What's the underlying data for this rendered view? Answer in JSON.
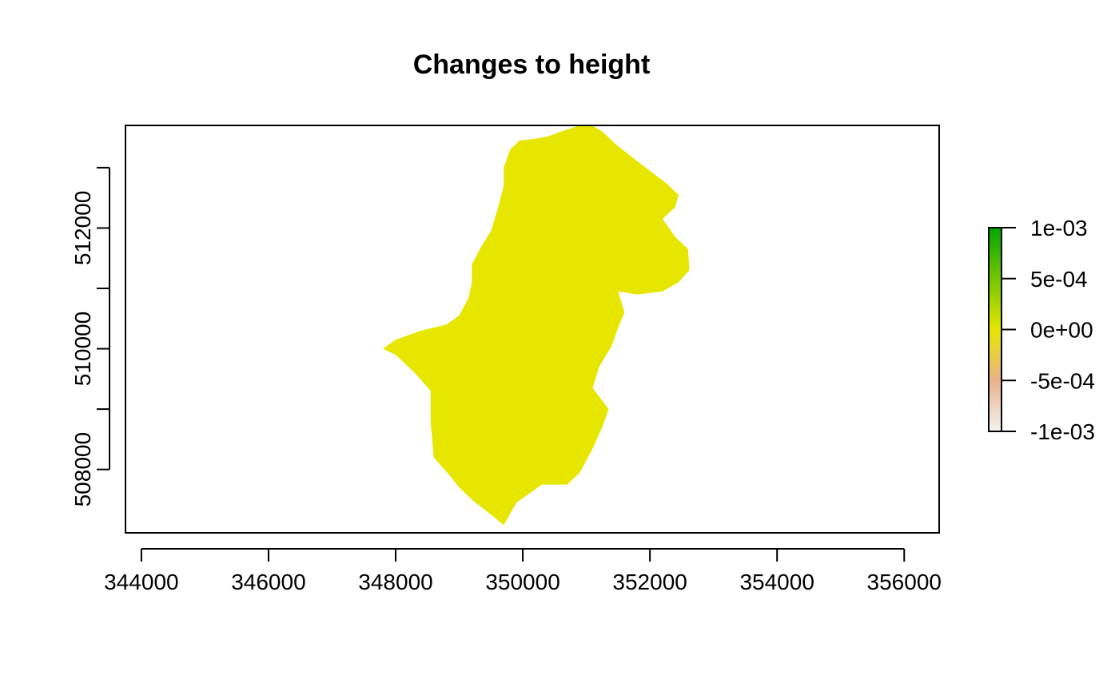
{
  "chart_data": {
    "type": "heatmap",
    "title": "Changes to height",
    "xlabel": "",
    "ylabel": "",
    "xlim": [
      343750,
      356550
    ],
    "ylim": [
      506950,
      513700
    ],
    "x_ticks": [
      344000,
      346000,
      348000,
      350000,
      352000,
      354000,
      356000
    ],
    "x_tick_labels": [
      "344000",
      "346000",
      "348000",
      "350000",
      "352000",
      "354000",
      "356000"
    ],
    "y_ticks": [
      508000,
      509000,
      510000,
      511000,
      512000,
      513000
    ],
    "y_tick_labels": [
      "508000",
      "",
      "510000",
      "",
      "512000",
      ""
    ],
    "raster_value": 0,
    "raster_color": "#E6E600",
    "legend": {
      "placement": "right",
      "min": -0.001,
      "max": 0.001,
      "ticks": [
        0.001,
        0.0005,
        0,
        -0.0005,
        -0.001
      ],
      "tick_labels": [
        "1e-03",
        "5e-04",
        "0e+00",
        "-5e-04",
        "-1e-03"
      ],
      "colors": [
        "#00A600",
        "#E6E600",
        "#F2F2F2"
      ]
    },
    "region_outline": [
      [
        351050,
        513720
      ],
      [
        351250,
        513600
      ],
      [
        351450,
        513400
      ],
      [
        351750,
        513150
      ],
      [
        352000,
        512950
      ],
      [
        352250,
        512750
      ],
      [
        352450,
        512550
      ],
      [
        352400,
        512350
      ],
      [
        352200,
        512150
      ],
      [
        352400,
        511850
      ],
      [
        352600,
        511650
      ],
      [
        352620,
        511300
      ],
      [
        352450,
        511100
      ],
      [
        352200,
        510950
      ],
      [
        351800,
        510900
      ],
      [
        351500,
        510950
      ],
      [
        351600,
        510600
      ],
      [
        351500,
        510350
      ],
      [
        351400,
        510050
      ],
      [
        351200,
        509700
      ],
      [
        351100,
        509350
      ],
      [
        351350,
        509000
      ],
      [
        351250,
        508700
      ],
      [
        351100,
        508350
      ],
      [
        350900,
        507950
      ],
      [
        350700,
        507750
      ],
      [
        350300,
        507750
      ],
      [
        349900,
        507450
      ],
      [
        349700,
        507080
      ],
      [
        349500,
        507250
      ],
      [
        349200,
        507500
      ],
      [
        349000,
        507700
      ],
      [
        348850,
        507900
      ],
      [
        348600,
        508200
      ],
      [
        348550,
        508800
      ],
      [
        348550,
        509300
      ],
      [
        348300,
        509600
      ],
      [
        348000,
        509900
      ],
      [
        347800,
        510000
      ],
      [
        348000,
        510150
      ],
      [
        348400,
        510300
      ],
      [
        348800,
        510400
      ],
      [
        349000,
        510550
      ],
      [
        349150,
        510850
      ],
      [
        349200,
        511100
      ],
      [
        349200,
        511400
      ],
      [
        349350,
        511700
      ],
      [
        349500,
        511950
      ],
      [
        349600,
        512300
      ],
      [
        349700,
        512700
      ],
      [
        349700,
        513000
      ],
      [
        349800,
        513300
      ],
      [
        349950,
        513450
      ],
      [
        350200,
        513480
      ],
      [
        350400,
        513520
      ],
      [
        350600,
        513600
      ],
      [
        350900,
        513700
      ]
    ]
  }
}
